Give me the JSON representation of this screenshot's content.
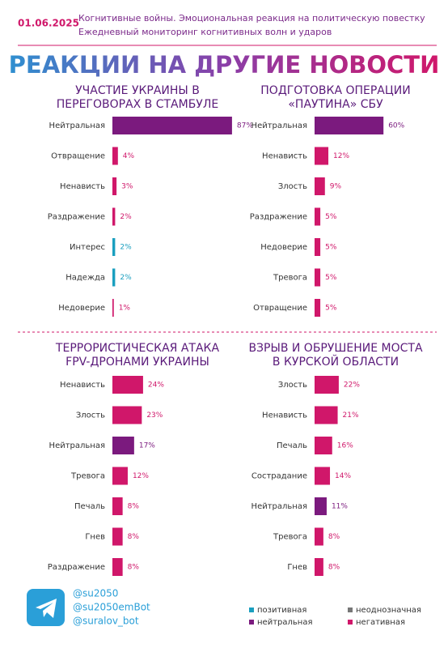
{
  "header": {
    "date": "01.06.2025",
    "line1": "Когнитивные войны. Эмоциональная реакция на политическую повестку",
    "line2": "Ежедневный мониторинг когнитивных волн и ударов",
    "title": "РЕАКЦИИ НА ДРУГИЕ НОВОСТИ"
  },
  "chart_data": [
    {
      "type": "bar",
      "title_lines": [
        "УЧАСТИЕ УКРАИНЫ В",
        "ПЕРЕГОВОРАХ В СТАМБУЛЕ"
      ],
      "categories": [
        "Нейтральная",
        "Отвращение",
        "Ненависть",
        "Раздражение",
        "Интерес",
        "Надежда",
        "Недоверие"
      ],
      "values": [
        87,
        4,
        3,
        2,
        2,
        2,
        1
      ],
      "value_labels": [
        "87%",
        "4%",
        "3%",
        "2%",
        "2%",
        "2%",
        "1%"
      ],
      "colors": [
        "#7b1a7e",
        "#d0176a",
        "#d0176a",
        "#d0176a",
        "#1a9fbf",
        "#1a9fbf",
        "#d0176a"
      ],
      "xlim": [
        0,
        100
      ]
    },
    {
      "type": "bar",
      "title_lines": [
        "ПОДГОТОВКА ОПЕРАЦИИ",
        "«ПАУТИНА» СБУ"
      ],
      "categories": [
        "Нейтральная",
        "Ненависть",
        "Злость",
        "Раздражение",
        "Недоверие",
        "Тревога",
        "Отвращение"
      ],
      "values": [
        60,
        12,
        9,
        5,
        5,
        5,
        5
      ],
      "value_labels": [
        "60%",
        "12%",
        "9%",
        "5%",
        "5%",
        "5%",
        "5%"
      ],
      "colors": [
        "#7b1a7e",
        "#d0176a",
        "#d0176a",
        "#d0176a",
        "#d0176a",
        "#d0176a",
        "#d0176a"
      ],
      "xlim": [
        0,
        100
      ]
    },
    {
      "type": "bar",
      "title_lines": [
        "ТЕРРОРИСТИЧЕСКАЯ АТАКА",
        "FPV-ДРОНАМИ УКРАИНЫ"
      ],
      "categories": [
        "Ненависть",
        "Злость",
        "Нейтральная",
        "Тревога",
        "Печаль",
        "Гнев",
        "Раздражение"
      ],
      "values": [
        24,
        23,
        17,
        12,
        8,
        8,
        8
      ],
      "value_labels": [
        "24%",
        "23%",
        "17%",
        "12%",
        "8%",
        "8%",
        "8%"
      ],
      "colors": [
        "#d0176a",
        "#d0176a",
        "#7b1a7e",
        "#d0176a",
        "#d0176a",
        "#d0176a",
        "#d0176a"
      ],
      "xlim": [
        0,
        100
      ]
    },
    {
      "type": "bar",
      "title_lines": [
        "ВЗРЫВ И ОБРУШЕНИЕ МОСТА",
        "В КУРСКОЙ ОБЛАСТИ"
      ],
      "categories": [
        "Злость",
        "Ненависть",
        "Печаль",
        "Сострадание",
        "Нейтральная",
        "Тревога",
        "Гнев"
      ],
      "values": [
        22,
        21,
        16,
        14,
        11,
        8,
        8
      ],
      "value_labels": [
        "22%",
        "21%",
        "16%",
        "14%",
        "11%",
        "8%",
        "8%"
      ],
      "colors": [
        "#d0176a",
        "#d0176a",
        "#d0176a",
        "#d0176a",
        "#7b1a7e",
        "#d0176a",
        "#d0176a"
      ],
      "xlim": [
        0,
        100
      ]
    }
  ],
  "footer": {
    "handles": [
      "@su2050",
      "@su2050emBot",
      "@suralov_bot"
    ]
  },
  "legend": [
    {
      "name": "позитивная",
      "color": "#1a9fbf"
    },
    {
      "name": "неоднозначная",
      "color": "#777777"
    },
    {
      "name": "нейтральная",
      "color": "#7b1a7e"
    },
    {
      "name": "негативная",
      "color": "#d0176a"
    }
  ]
}
